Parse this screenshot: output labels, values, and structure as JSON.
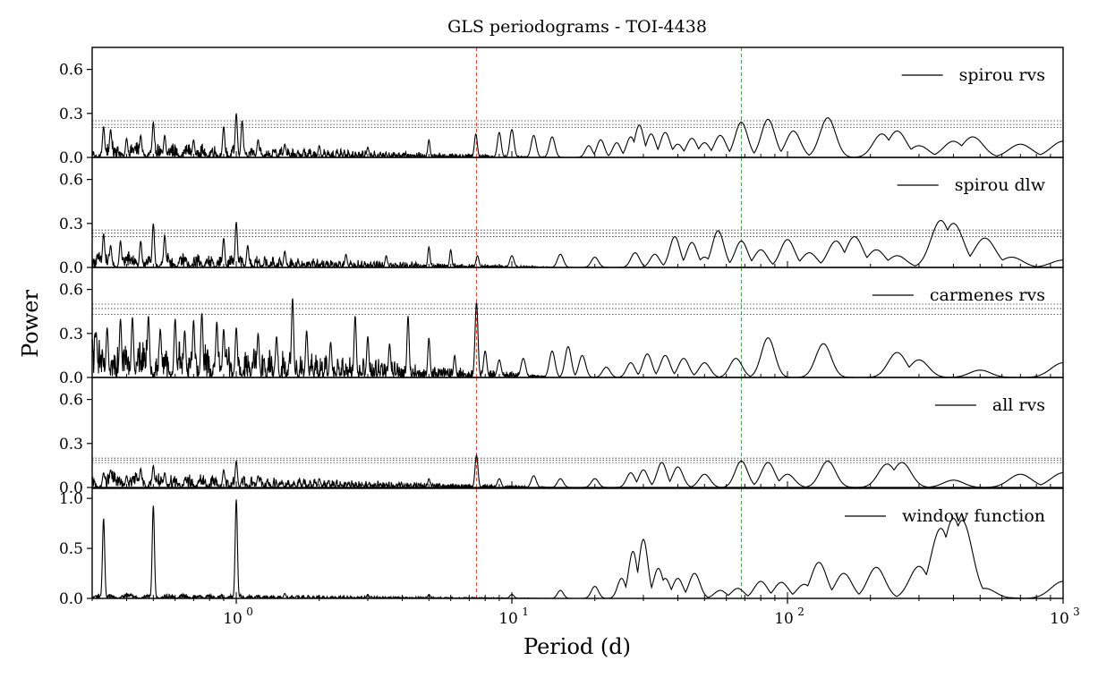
{
  "chart_data": {
    "type": "line",
    "title": "GLS periodograms - TOI-4438",
    "xlabel": "Period (d)",
    "ylabel": "Power",
    "xscale": "log",
    "xlim": [
      0.3,
      1000
    ],
    "x_ticks": [
      {
        "base": "10",
        "exp": "0"
      },
      {
        "base": "10",
        "exp": "1"
      },
      {
        "base": "10",
        "exp": "2"
      },
      {
        "base": "10",
        "exp": "3"
      }
    ],
    "legend_position": "upper right",
    "grid": false,
    "vertical_lines": [
      {
        "x": 7.44,
        "color": "#e8302b",
        "style": "dashed"
      },
      {
        "x": 68,
        "color": "#3c8c3c",
        "style": "dashed"
      }
    ],
    "panels": [
      {
        "name": "spirou rvs",
        "ylim": [
          0,
          0.75
        ],
        "yticks": [
          "0.0",
          "0.3",
          "0.6"
        ],
        "fap_levels": [
          0.205,
          0.225,
          0.25
        ],
        "peaks": [
          [
            0.33,
            0.21
          ],
          [
            0.35,
            0.19
          ],
          [
            0.4,
            0.13
          ],
          [
            0.45,
            0.15
          ],
          [
            0.5,
            0.24
          ],
          [
            0.55,
            0.15
          ],
          [
            0.7,
            0.12
          ],
          [
            0.9,
            0.21
          ],
          [
            1.0,
            0.3
          ],
          [
            1.05,
            0.25
          ],
          [
            1.2,
            0.12
          ],
          [
            1.5,
            0.09
          ],
          [
            2.0,
            0.08
          ],
          [
            3.0,
            0.07
          ],
          [
            5.0,
            0.12
          ],
          [
            7.4,
            0.16
          ],
          [
            9.0,
            0.17
          ],
          [
            10.0,
            0.19
          ],
          [
            12.0,
            0.15
          ],
          [
            14.0,
            0.14
          ],
          [
            19.0,
            0.08
          ],
          [
            21.0,
            0.12
          ],
          [
            24.0,
            0.1
          ],
          [
            27.0,
            0.14
          ],
          [
            29.0,
            0.22
          ],
          [
            32.0,
            0.16
          ],
          [
            36.0,
            0.17
          ],
          [
            40.0,
            0.09
          ],
          [
            45.0,
            0.13
          ],
          [
            50.0,
            0.1
          ],
          [
            57.0,
            0.15
          ],
          [
            68.0,
            0.24
          ],
          [
            85.0,
            0.26
          ],
          [
            105.0,
            0.18
          ],
          [
            140.0,
            0.27
          ],
          [
            220.0,
            0.16
          ],
          [
            250.0,
            0.18
          ],
          [
            300.0,
            0.08
          ],
          [
            400.0,
            0.11
          ],
          [
            470.0,
            0.14
          ],
          [
            700.0,
            0.09
          ],
          [
            1000.0,
            0.11
          ]
        ]
      },
      {
        "name": "spirou dlw",
        "ylim": [
          0,
          0.75
        ],
        "yticks": [
          "0.0",
          "0.3",
          "0.6"
        ],
        "fap_levels": [
          0.21,
          0.235,
          0.255
        ],
        "peaks": [
          [
            0.33,
            0.23
          ],
          [
            0.35,
            0.15
          ],
          [
            0.38,
            0.18
          ],
          [
            0.45,
            0.18
          ],
          [
            0.5,
            0.3
          ],
          [
            0.55,
            0.22
          ],
          [
            0.9,
            0.2
          ],
          [
            1.0,
            0.31
          ],
          [
            1.1,
            0.15
          ],
          [
            1.5,
            0.11
          ],
          [
            2.5,
            0.09
          ],
          [
            3.5,
            0.08
          ],
          [
            5.0,
            0.14
          ],
          [
            6.0,
            0.12
          ],
          [
            7.5,
            0.08
          ],
          [
            10.0,
            0.08
          ],
          [
            15.0,
            0.09
          ],
          [
            20.0,
            0.07
          ],
          [
            28.0,
            0.1
          ],
          [
            33.0,
            0.09
          ],
          [
            39.0,
            0.21
          ],
          [
            45.0,
            0.17
          ],
          [
            50.0,
            0.07
          ],
          [
            56.0,
            0.25
          ],
          [
            68.0,
            0.18
          ],
          [
            80.0,
            0.12
          ],
          [
            100.0,
            0.19
          ],
          [
            120.0,
            0.1
          ],
          [
            150.0,
            0.18
          ],
          [
            175.0,
            0.21
          ],
          [
            210.0,
            0.12
          ],
          [
            250.0,
            0.08
          ],
          [
            360.0,
            0.32
          ],
          [
            400.0,
            0.3
          ],
          [
            520.0,
            0.2
          ],
          [
            650.0,
            0.07
          ],
          [
            1000.0,
            0.05
          ]
        ]
      },
      {
        "name": "carmenes rvs",
        "ylim": [
          0,
          0.75
        ],
        "yticks": [
          "0.0",
          "0.3",
          "0.6"
        ],
        "fap_levels": [
          0.43,
          0.47,
          0.5
        ],
        "peaks": [
          [
            0.31,
            0.31
          ],
          [
            0.34,
            0.34
          ],
          [
            0.38,
            0.4
          ],
          [
            0.42,
            0.41
          ],
          [
            0.48,
            0.42
          ],
          [
            0.53,
            0.33
          ],
          [
            0.6,
            0.4
          ],
          [
            0.65,
            0.32
          ],
          [
            0.7,
            0.39
          ],
          [
            0.75,
            0.44
          ],
          [
            0.85,
            0.38
          ],
          [
            0.9,
            0.33
          ],
          [
            1.0,
            0.34
          ],
          [
            1.2,
            0.3
          ],
          [
            1.4,
            0.28
          ],
          [
            1.6,
            0.54
          ],
          [
            1.8,
            0.32
          ],
          [
            2.2,
            0.24
          ],
          [
            2.7,
            0.42
          ],
          [
            3.0,
            0.28
          ],
          [
            3.6,
            0.23
          ],
          [
            4.2,
            0.42
          ],
          [
            5.0,
            0.27
          ],
          [
            6.2,
            0.15
          ],
          [
            7.44,
            0.51
          ],
          [
            8.0,
            0.18
          ],
          [
            9.0,
            0.12
          ],
          [
            11.0,
            0.13
          ],
          [
            14.0,
            0.18
          ],
          [
            16.0,
            0.21
          ],
          [
            18.0,
            0.15
          ],
          [
            22.0,
            0.07
          ],
          [
            27.0,
            0.1
          ],
          [
            31.0,
            0.16
          ],
          [
            36.0,
            0.15
          ],
          [
            42.0,
            0.13
          ],
          [
            50.0,
            0.1
          ],
          [
            65.0,
            0.13
          ],
          [
            85.0,
            0.27
          ],
          [
            135.0,
            0.23
          ],
          [
            250.0,
            0.17
          ],
          [
            300.0,
            0.12
          ],
          [
            500.0,
            0.05
          ],
          [
            1000.0,
            0.1
          ]
        ]
      },
      {
        "name": "all rvs",
        "ylim": [
          0,
          0.75
        ],
        "yticks": [
          "0.0",
          "0.3",
          "0.6"
        ],
        "fap_levels": [
          0.17,
          0.185,
          0.2
        ],
        "peaks": [
          [
            0.33,
            0.1
          ],
          [
            0.35,
            0.12
          ],
          [
            0.4,
            0.08
          ],
          [
            0.45,
            0.13
          ],
          [
            0.5,
            0.15
          ],
          [
            0.55,
            0.1
          ],
          [
            0.9,
            0.12
          ],
          [
            1.0,
            0.18
          ],
          [
            1.2,
            0.08
          ],
          [
            2.0,
            0.06
          ],
          [
            5.0,
            0.06
          ],
          [
            7.44,
            0.22
          ],
          [
            9.0,
            0.06
          ],
          [
            12.0,
            0.08
          ],
          [
            15.0,
            0.06
          ],
          [
            20.0,
            0.06
          ],
          [
            27.0,
            0.1
          ],
          [
            30.0,
            0.12
          ],
          [
            35.0,
            0.17
          ],
          [
            40.0,
            0.14
          ],
          [
            50.0,
            0.09
          ],
          [
            68.0,
            0.18
          ],
          [
            85.0,
            0.17
          ],
          [
            100.0,
            0.09
          ],
          [
            140.0,
            0.18
          ],
          [
            230.0,
            0.16
          ],
          [
            260.0,
            0.17
          ],
          [
            400.0,
            0.05
          ],
          [
            700.0,
            0.09
          ],
          [
            1000.0,
            0.1
          ]
        ]
      },
      {
        "name": "window function",
        "ylim": [
          0,
          1.1
        ],
        "yticks": [
          "0.0",
          "0.5",
          "1.0"
        ],
        "fap_levels": [],
        "peaks": [
          [
            0.33,
            0.8
          ],
          [
            0.5,
            0.93
          ],
          [
            1.0,
            0.99
          ],
          [
            0.33,
            0.3
          ],
          [
            1.5,
            0.05
          ],
          [
            3.0,
            0.04
          ],
          [
            5.0,
            0.04
          ],
          [
            10.0,
            0.04
          ],
          [
            15.0,
            0.08
          ],
          [
            20.0,
            0.12
          ],
          [
            25.0,
            0.2
          ],
          [
            27.5,
            0.47
          ],
          [
            30.0,
            0.59
          ],
          [
            34.0,
            0.3
          ],
          [
            36.0,
            0.2
          ],
          [
            40.0,
            0.2
          ],
          [
            46.0,
            0.25
          ],
          [
            57.0,
            0.08
          ],
          [
            66.0,
            0.1
          ],
          [
            80.0,
            0.17
          ],
          [
            95.0,
            0.16
          ],
          [
            115.0,
            0.14
          ],
          [
            130.0,
            0.36
          ],
          [
            160.0,
            0.25
          ],
          [
            210.0,
            0.31
          ],
          [
            300.0,
            0.32
          ],
          [
            360.0,
            0.7
          ],
          [
            400.0,
            0.8
          ],
          [
            430.0,
            0.78
          ],
          [
            520.0,
            0.1
          ],
          [
            600.0,
            0.01
          ],
          [
            1000.0,
            0.17
          ]
        ]
      }
    ]
  }
}
